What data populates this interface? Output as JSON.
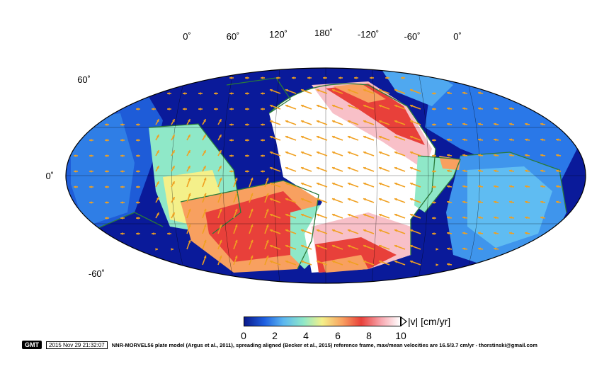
{
  "map": {
    "projection": "Robinson",
    "lon_labels": [
      "0˚",
      "60˚",
      "120˚",
      "180˚",
      "-120˚",
      "-60˚",
      "0˚"
    ],
    "lat_labels": [
      "60˚",
      "0˚",
      "-60˚"
    ]
  },
  "colorbar": {
    "ticks": [
      "0",
      "2",
      "4",
      "6",
      "8",
      "10"
    ],
    "label": "|v| [cm/yr]",
    "colors": [
      "#0a1a8c",
      "#1f5fe0",
      "#5bb6f0",
      "#8fe8c8",
      "#f4f08a",
      "#f8a060",
      "#e8403a",
      "#f8a8b0",
      "#ffffff"
    ]
  },
  "footer": {
    "logo": "GMT",
    "timestamp": "2015 Nov 29 21:32:07",
    "credit": "NNR-MORVEL56 plate model (Argus et al., 2011), spreading aligned (Becker et al., 2015) reference frame, max/mean velocities are 16.5/3.7 cm/yr - thorstinski@gmail.com"
  },
  "colors": {
    "ocean_deep": "#0a1aa0",
    "plate_boundary": "#2a7a3a",
    "arrow": "#f0a020",
    "grid": "#000000"
  }
}
